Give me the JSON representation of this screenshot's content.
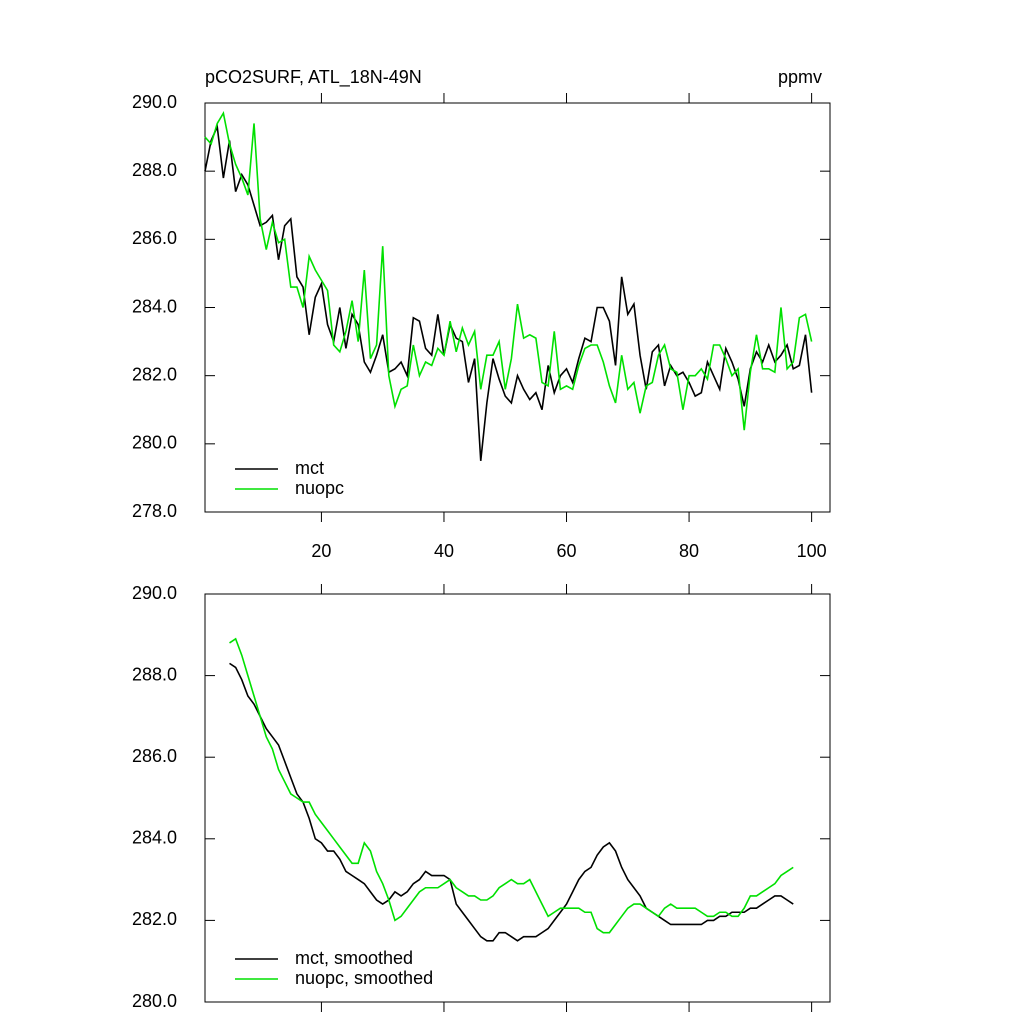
{
  "chart_data": [
    {
      "type": "line",
      "title": "pCO2SURF, ATL_18N-49N",
      "units": "ppmv",
      "x": [
        1,
        2,
        3,
        4,
        5,
        6,
        7,
        8,
        9,
        10,
        11,
        12,
        13,
        14,
        15,
        16,
        17,
        18,
        19,
        20,
        21,
        22,
        23,
        24,
        25,
        26,
        27,
        28,
        29,
        30,
        31,
        32,
        33,
        34,
        35,
        36,
        37,
        38,
        39,
        40,
        41,
        42,
        43,
        44,
        45,
        46,
        47,
        48,
        49,
        50,
        51,
        52,
        53,
        54,
        55,
        56,
        57,
        58,
        59,
        60,
        61,
        62,
        63,
        64,
        65,
        66,
        67,
        68,
        69,
        70,
        71,
        72,
        73,
        74,
        75,
        76,
        77,
        78,
        79,
        80,
        81,
        82,
        83,
        84,
        85,
        86,
        87,
        88,
        89,
        90,
        91,
        92,
        93,
        94,
        95,
        96,
        97,
        98,
        99,
        100
      ],
      "series": [
        {
          "name": "mct",
          "color": "#000000",
          "values": [
            288.0,
            288.9,
            289.3,
            287.8,
            288.9,
            287.4,
            287.9,
            287.6,
            287.0,
            286.4,
            286.5,
            286.7,
            285.4,
            286.4,
            286.6,
            284.9,
            284.6,
            283.2,
            284.3,
            284.7,
            283.5,
            283.0,
            284.0,
            282.8,
            283.8,
            283.5,
            282.4,
            282.1,
            282.6,
            283.2,
            282.1,
            282.2,
            282.4,
            282.0,
            283.7,
            283.6,
            282.8,
            282.6,
            283.8,
            282.6,
            283.5,
            283.1,
            283.0,
            281.8,
            282.5,
            279.5,
            281.2,
            282.5,
            281.9,
            281.4,
            281.2,
            282.0,
            281.6,
            281.3,
            281.5,
            281.0,
            282.3,
            281.5,
            282.0,
            282.2,
            281.8,
            282.5,
            283.1,
            283.0,
            284.0,
            284.0,
            283.6,
            282.3,
            284.9,
            283.8,
            284.1,
            282.6,
            281.6,
            282.7,
            282.9,
            281.7,
            282.3,
            282.0,
            282.1,
            281.8,
            281.4,
            281.5,
            282.4,
            282.0,
            281.6,
            282.8,
            282.4,
            281.9,
            281.1,
            282.2,
            282.7,
            282.4,
            282.9,
            282.4,
            282.6,
            282.9,
            282.2,
            282.3,
            283.2,
            281.5
          ]
        },
        {
          "name": "nuopc",
          "color": "#00e000",
          "values": [
            289.0,
            288.8,
            289.4,
            289.7,
            288.8,
            288.2,
            287.8,
            287.3,
            289.4,
            286.6,
            285.7,
            286.5,
            285.9,
            286.0,
            284.6,
            284.6,
            284.0,
            285.5,
            285.1,
            284.8,
            284.5,
            282.9,
            282.7,
            283.3,
            284.2,
            283.0,
            285.1,
            282.5,
            282.9,
            285.8,
            282.0,
            281.1,
            281.6,
            281.7,
            282.9,
            282.0,
            282.4,
            282.3,
            282.8,
            282.6,
            283.6,
            282.7,
            283.4,
            282.9,
            283.3,
            281.6,
            282.6,
            282.6,
            283.0,
            281.6,
            282.5,
            284.1,
            283.1,
            283.2,
            283.1,
            281.8,
            281.7,
            283.3,
            281.6,
            281.7,
            281.6,
            282.3,
            282.8,
            282.9,
            282.9,
            282.4,
            281.7,
            281.2,
            282.6,
            281.6,
            281.8,
            280.9,
            281.7,
            281.8,
            282.6,
            282.9,
            282.2,
            282.1,
            281.0,
            282.0,
            282.0,
            282.2,
            281.9,
            282.9,
            282.9,
            282.5,
            282.0,
            282.2,
            280.4,
            282.1,
            283.2,
            282.2,
            282.2,
            282.1,
            284.0,
            282.2,
            282.4,
            283.7,
            283.8,
            283.0
          ]
        }
      ],
      "xlim": [
        1,
        103
      ],
      "xticks": [
        20,
        40,
        60,
        80,
        100
      ],
      "xtick_labels": true,
      "ylim": [
        278,
        290
      ],
      "yticks": [
        {
          "value": 278,
          "label": "278.0"
        },
        {
          "value": 280,
          "label": "280.0"
        },
        {
          "value": 282,
          "label": "282.0"
        },
        {
          "value": 284,
          "label": "284.0"
        },
        {
          "value": 286,
          "label": "286.0"
        },
        {
          "value": 288,
          "label": "288.0"
        },
        {
          "value": 290,
          "label": "290.0"
        }
      ],
      "legend": "lower left"
    },
    {
      "type": "line",
      "x": [
        5,
        6,
        7,
        8,
        9,
        10,
        11,
        12,
        13,
        14,
        15,
        16,
        17,
        18,
        19,
        20,
        21,
        22,
        23,
        24,
        25,
        26,
        27,
        28,
        29,
        30,
        31,
        32,
        33,
        34,
        35,
        36,
        37,
        38,
        39,
        40,
        41,
        42,
        43,
        44,
        45,
        46,
        47,
        48,
        49,
        50,
        51,
        52,
        53,
        54,
        55,
        56,
        57,
        58,
        59,
        60,
        61,
        62,
        63,
        64,
        65,
        66,
        67,
        68,
        69,
        70,
        71,
        72,
        73,
        74,
        75,
        76,
        77,
        78,
        79,
        80,
        81,
        82,
        83,
        84,
        85,
        86,
        87,
        88,
        89,
        90,
        91,
        92,
        93,
        94,
        95,
        96,
        97
      ],
      "series": [
        {
          "name": "mct, smoothed",
          "color": "#000000",
          "values": [
            288.3,
            288.2,
            287.9,
            287.5,
            287.3,
            287.0,
            286.7,
            286.5,
            286.3,
            285.9,
            285.5,
            285.1,
            284.9,
            284.5,
            284.0,
            283.9,
            283.7,
            283.7,
            283.5,
            283.2,
            283.1,
            283.0,
            282.9,
            282.7,
            282.5,
            282.4,
            282.5,
            282.7,
            282.6,
            282.7,
            282.9,
            283.0,
            283.2,
            283.1,
            283.1,
            283.1,
            283.0,
            282.4,
            282.2,
            282.0,
            281.8,
            281.6,
            281.5,
            281.5,
            281.7,
            281.7,
            281.6,
            281.5,
            281.6,
            281.6,
            281.6,
            281.7,
            281.8,
            282.0,
            282.2,
            282.4,
            282.7,
            283.0,
            283.2,
            283.3,
            283.6,
            283.8,
            283.9,
            283.7,
            283.3,
            283.0,
            282.8,
            282.6,
            282.3,
            282.2,
            282.1,
            282.0,
            281.9,
            281.9,
            281.9,
            281.9,
            281.9,
            281.9,
            282.0,
            282.0,
            282.1,
            282.1,
            282.2,
            282.2,
            282.2,
            282.3,
            282.3,
            282.4,
            282.5,
            282.6,
            282.6,
            282.5,
            282.4
          ]
        },
        {
          "name": "nuopc, smoothed",
          "color": "#00e000",
          "values": [
            288.8,
            288.9,
            288.5,
            288.0,
            287.5,
            287.0,
            286.5,
            286.2,
            285.7,
            285.4,
            285.1,
            285.0,
            284.9,
            284.9,
            284.6,
            284.4,
            284.2,
            284.0,
            283.8,
            283.6,
            283.4,
            283.4,
            283.9,
            283.7,
            283.2,
            282.9,
            282.5,
            282.0,
            282.1,
            282.3,
            282.5,
            282.7,
            282.8,
            282.8,
            282.8,
            282.9,
            283.0,
            282.8,
            282.7,
            282.6,
            282.6,
            282.5,
            282.5,
            282.6,
            282.8,
            282.9,
            283.0,
            282.9,
            282.9,
            283.0,
            282.7,
            282.4,
            282.1,
            282.2,
            282.3,
            282.3,
            282.3,
            282.3,
            282.2,
            282.2,
            281.8,
            281.7,
            281.7,
            281.9,
            282.1,
            282.3,
            282.4,
            282.4,
            282.3,
            282.2,
            282.1,
            282.3,
            282.4,
            282.3,
            282.3,
            282.3,
            282.3,
            282.2,
            282.1,
            282.1,
            282.2,
            282.2,
            282.1,
            282.1,
            282.3,
            282.6,
            282.6,
            282.7,
            282.8,
            282.9,
            283.1,
            283.2,
            283.3
          ]
        }
      ],
      "xlim": [
        1,
        103
      ],
      "xticks": [
        20,
        40,
        60,
        80,
        100
      ],
      "xtick_labels": false,
      "ylim": [
        280,
        290
      ],
      "yticks": [
        {
          "value": 280,
          "label": "280.0"
        },
        {
          "value": 282,
          "label": "282.0"
        },
        {
          "value": 284,
          "label": "284.0"
        },
        {
          "value": 286,
          "label": "286.0"
        },
        {
          "value": 288,
          "label": "288.0"
        },
        {
          "value": 290,
          "label": "290.0"
        }
      ],
      "legend": "lower left"
    }
  ]
}
